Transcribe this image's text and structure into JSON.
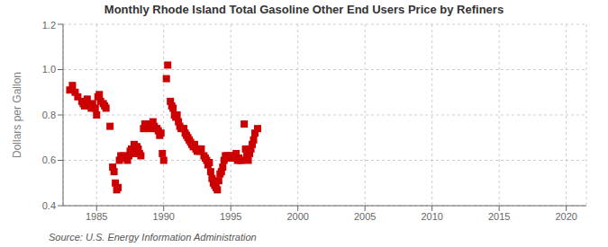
{
  "chart_data": {
    "type": "scatter",
    "title": "Monthly Rhode Island Total Gasoline Other End Users Price by Refiners",
    "ylabel": "Dollars per Gallon",
    "annotation": "Source: U.S. Energy Information Administration",
    "color": "#cc0000",
    "marker": "square",
    "grid": true,
    "xlim": [
      1982.5,
      2021.5
    ],
    "ylim": [
      0.4,
      1.2
    ],
    "xticks": [
      1985,
      1990,
      1995,
      2000,
      2005,
      2010,
      2015,
      2020
    ],
    "yticks": [
      0.4,
      0.6,
      0.8,
      {
        "value": 1.0,
        "label": "1.0"
      },
      1.2
    ],
    "x": [
      1983.0,
      1983.2,
      1983.4,
      1983.6,
      1983.9,
      1984.0,
      1984.1,
      1984.3,
      1984.5,
      1984.6,
      1984.7,
      1984.9,
      1985.0,
      1985.1,
      1985.2,
      1985.3,
      1985.5,
      1985.6,
      1985.7,
      1986.0,
      1986.2,
      1986.3,
      1986.4,
      1986.5,
      1986.6,
      1986.7,
      1986.8,
      1986.9,
      1987.0,
      1987.1,
      1987.2,
      1987.3,
      1987.4,
      1987.5,
      1987.6,
      1987.7,
      1987.8,
      1987.9,
      1988.0,
      1988.1,
      1988.2,
      1988.3,
      1988.5,
      1988.6,
      1988.7,
      1988.8,
      1988.9,
      1989.0,
      1989.1,
      1989.2,
      1989.3,
      1989.4,
      1989.5,
      1989.6,
      1989.7,
      1989.8,
      1989.9,
      1990.0,
      1990.2,
      1990.3,
      1990.5,
      1990.6,
      1990.7,
      1990.8,
      1990.9,
      1991.0,
      1991.1,
      1991.2,
      1991.3,
      1991.5,
      1991.6,
      1991.7,
      1991.8,
      1991.9,
      1992.0,
      1992.1,
      1992.2,
      1992.3,
      1992.4,
      1992.5,
      1992.6,
      1992.7,
      1992.8,
      1993.0,
      1993.1,
      1993.2,
      1993.3,
      1993.4,
      1993.5,
      1993.6,
      1993.7,
      1993.8,
      1993.9,
      1994.0,
      1994.1,
      1994.2,
      1994.3,
      1994.4,
      1994.5,
      1994.6,
      1994.7,
      1994.8,
      1994.9,
      1995.0,
      1995.1,
      1995.2,
      1995.3,
      1995.4,
      1995.5,
      1995.6,
      1995.7,
      1995.8,
      1996.0,
      1996.1,
      1996.2,
      1996.3,
      1996.4,
      1996.5,
      1996.6,
      1996.7,
      1996.8,
      1997.0
    ],
    "values": [
      0.91,
      0.93,
      0.9,
      0.88,
      0.86,
      0.85,
      0.84,
      0.87,
      0.84,
      0.83,
      0.85,
      0.83,
      0.8,
      0.88,
      0.89,
      0.86,
      0.85,
      0.84,
      0.83,
      0.75,
      0.57,
      0.55,
      0.5,
      0.47,
      0.48,
      0.6,
      0.62,
      0.61,
      0.62,
      0.61,
      0.61,
      0.6,
      0.62,
      0.64,
      0.65,
      0.63,
      0.67,
      0.66,
      0.66,
      0.65,
      0.63,
      0.62,
      0.74,
      0.76,
      0.76,
      0.75,
      0.74,
      0.75,
      0.76,
      0.77,
      0.75,
      0.74,
      0.74,
      0.73,
      0.71,
      0.72,
      0.63,
      0.6,
      0.96,
      1.02,
      0.86,
      0.84,
      0.83,
      0.8,
      0.79,
      0.8,
      0.77,
      0.75,
      0.74,
      0.74,
      0.72,
      0.71,
      0.7,
      0.69,
      0.68,
      0.67,
      0.66,
      0.67,
      0.65,
      0.64,
      0.65,
      0.64,
      0.65,
      0.62,
      0.61,
      0.6,
      0.58,
      0.59,
      0.55,
      0.52,
      0.5,
      0.49,
      0.48,
      0.47,
      0.51,
      0.54,
      0.55,
      0.57,
      0.6,
      0.62,
      0.62,
      0.61,
      0.62,
      0.62,
      0.61,
      0.61,
      0.62,
      0.63,
      0.6,
      0.61,
      0.6,
      0.6,
      0.76,
      0.65,
      0.62,
      0.6,
      0.63,
      0.65,
      0.67,
      0.69,
      0.72,
      0.74
    ]
  }
}
